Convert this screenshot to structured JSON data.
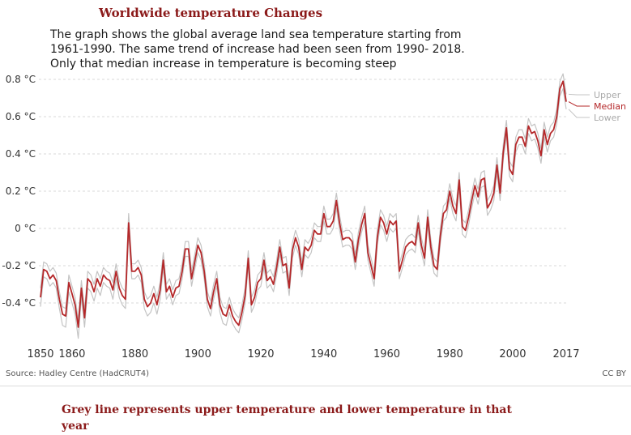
{
  "header": {
    "title": "Worldwide temperature Changes",
    "description": "The graph shows the global average land sea temperature starting from 1961-1990. The same trend of increase had been seen from 1990- 2018. Only that median increase in temperature is becoming steep"
  },
  "footer": {
    "source": "Source: Hadley Centre (HadCRUT4)",
    "license": "CC BY",
    "note": "Grey line represents upper temperature and lower temperature in that year"
  },
  "colors": {
    "median": "#b5282a",
    "bounds": "#c4c4c4",
    "grid": "#d9d9d9",
    "text": "#333333"
  },
  "chart_data": {
    "type": "line",
    "title": "Worldwide temperature Changes",
    "xlabel": "",
    "ylabel": "",
    "xlim": [
      1850,
      2017
    ],
    "ylim": [
      -0.6,
      0.85
    ],
    "y_ticks": [
      -0.4,
      -0.2,
      0,
      0.2,
      0.4,
      0.6,
      0.8
    ],
    "y_tick_labels": [
      "-0.4 °C",
      "-0.2 °C",
      "0 °C",
      "0.2 °C",
      "0.4 °C",
      "0.6 °C",
      "0.8 °C"
    ],
    "x_ticks": [
      1850,
      1860,
      1880,
      1900,
      1920,
      1940,
      1960,
      1980,
      2000,
      2017
    ],
    "x_tick_labels": [
      "1850",
      "1860",
      "1880",
      "1900",
      "1920",
      "1940",
      "1960",
      "1980",
      "2000",
      "2017"
    ],
    "grid": true,
    "x": [
      1850,
      1851,
      1852,
      1853,
      1854,
      1855,
      1856,
      1857,
      1858,
      1859,
      1860,
      1861,
      1862,
      1863,
      1864,
      1865,
      1866,
      1867,
      1868,
      1869,
      1870,
      1871,
      1872,
      1873,
      1874,
      1875,
      1876,
      1877,
      1878,
      1879,
      1880,
      1881,
      1882,
      1883,
      1884,
      1885,
      1886,
      1887,
      1888,
      1889,
      1890,
      1891,
      1892,
      1893,
      1894,
      1895,
      1896,
      1897,
      1898,
      1899,
      1900,
      1901,
      1902,
      1903,
      1904,
      1905,
      1906,
      1907,
      1908,
      1909,
      1910,
      1911,
      1912,
      1913,
      1914,
      1915,
      1916,
      1917,
      1918,
      1919,
      1920,
      1921,
      1922,
      1923,
      1924,
      1925,
      1926,
      1927,
      1928,
      1929,
      1930,
      1931,
      1932,
      1933,
      1934,
      1935,
      1936,
      1937,
      1938,
      1939,
      1940,
      1941,
      1942,
      1943,
      1944,
      1945,
      1946,
      1947,
      1948,
      1949,
      1950,
      1951,
      1952,
      1953,
      1954,
      1955,
      1956,
      1957,
      1958,
      1959,
      1960,
      1961,
      1962,
      1963,
      1964,
      1965,
      1966,
      1967,
      1968,
      1969,
      1970,
      1971,
      1972,
      1973,
      1974,
      1975,
      1976,
      1977,
      1978,
      1979,
      1980,
      1981,
      1982,
      1983,
      1984,
      1985,
      1986,
      1987,
      1988,
      1989,
      1990,
      1991,
      1992,
      1993,
      1994,
      1995,
      1996,
      1997,
      1998,
      1999,
      2000,
      2001,
      2002,
      2003,
      2004,
      2005,
      2006,
      2007,
      2008,
      2009,
      2010,
      2011,
      2012,
      2013,
      2014,
      2015,
      2016,
      2017
    ],
    "series": [
      {
        "name": "Median",
        "values": [
          -0.37,
          -0.22,
          -0.23,
          -0.27,
          -0.25,
          -0.28,
          -0.38,
          -0.46,
          -0.47,
          -0.29,
          -0.35,
          -0.41,
          -0.53,
          -0.32,
          -0.48,
          -0.27,
          -0.29,
          -0.34,
          -0.27,
          -0.31,
          -0.25,
          -0.27,
          -0.28,
          -0.33,
          -0.23,
          -0.32,
          -0.36,
          -0.38,
          0.03,
          -0.23,
          -0.23,
          -0.21,
          -0.25,
          -0.38,
          -0.42,
          -0.4,
          -0.35,
          -0.41,
          -0.33,
          -0.17,
          -0.34,
          -0.31,
          -0.37,
          -0.32,
          -0.31,
          -0.23,
          -0.11,
          -0.11,
          -0.27,
          -0.18,
          -0.09,
          -0.13,
          -0.23,
          -0.38,
          -0.43,
          -0.34,
          -0.27,
          -0.41,
          -0.46,
          -0.47,
          -0.41,
          -0.47,
          -0.5,
          -0.52,
          -0.45,
          -0.36,
          -0.16,
          -0.41,
          -0.37,
          -0.29,
          -0.27,
          -0.17,
          -0.28,
          -0.26,
          -0.3,
          -0.21,
          -0.1,
          -0.2,
          -0.19,
          -0.32,
          -0.12,
          -0.05,
          -0.1,
          -0.22,
          -0.1,
          -0.12,
          -0.09,
          -0.01,
          -0.03,
          -0.03,
          0.08,
          0.01,
          0.01,
          0.04,
          0.15,
          0.03,
          -0.06,
          -0.05,
          -0.05,
          -0.07,
          -0.18,
          -0.06,
          0.02,
          0.08,
          -0.13,
          -0.2,
          -0.27,
          -0.05,
          0.06,
          0.03,
          -0.03,
          0.04,
          0.02,
          0.04,
          -0.23,
          -0.17,
          -0.1,
          -0.08,
          -0.07,
          -0.09,
          0.03,
          -0.09,
          -0.16,
          0.06,
          -0.1,
          -0.2,
          -0.22,
          -0.04,
          0.08,
          0.1,
          0.2,
          0.12,
          0.08,
          0.26,
          0.01,
          -0.01,
          0.06,
          0.15,
          0.23,
          0.17,
          0.26,
          0.27,
          0.11,
          0.14,
          0.19,
          0.34,
          0.19,
          0.41,
          0.54,
          0.32,
          0.29,
          0.45,
          0.49,
          0.49,
          0.44,
          0.55,
          0.51,
          0.52,
          0.47,
          0.39,
          0.53,
          0.45,
          0.51,
          0.53,
          0.6,
          0.75,
          0.79,
          0.68
        ]
      },
      {
        "name": "Upper",
        "values": [
          -0.32,
          -0.18,
          -0.19,
          -0.23,
          -0.21,
          -0.24,
          -0.34,
          -0.42,
          -0.43,
          -0.25,
          -0.31,
          -0.37,
          -0.49,
          -0.28,
          -0.44,
          -0.23,
          -0.25,
          -0.3,
          -0.23,
          -0.27,
          -0.21,
          -0.23,
          -0.24,
          -0.29,
          -0.19,
          -0.28,
          -0.32,
          -0.34,
          0.08,
          -0.19,
          -0.19,
          -0.17,
          -0.21,
          -0.34,
          -0.38,
          -0.36,
          -0.31,
          -0.37,
          -0.29,
          -0.13,
          -0.3,
          -0.27,
          -0.33,
          -0.28,
          -0.27,
          -0.19,
          -0.07,
          -0.07,
          -0.23,
          -0.14,
          -0.05,
          -0.09,
          -0.19,
          -0.34,
          -0.39,
          -0.3,
          -0.23,
          -0.37,
          -0.42,
          -0.43,
          -0.37,
          -0.43,
          -0.46,
          -0.48,
          -0.41,
          -0.32,
          -0.12,
          -0.37,
          -0.33,
          -0.25,
          -0.23,
          -0.13,
          -0.24,
          -0.22,
          -0.26,
          -0.17,
          -0.06,
          -0.16,
          -0.15,
          -0.28,
          -0.08,
          -0.01,
          -0.06,
          -0.18,
          -0.06,
          -0.08,
          -0.05,
          0.03,
          0.01,
          0.01,
          0.12,
          0.05,
          0.05,
          0.08,
          0.19,
          0.07,
          -0.02,
          -0.01,
          -0.01,
          -0.03,
          -0.14,
          -0.02,
          0.06,
          0.12,
          -0.09,
          -0.16,
          -0.23,
          -0.01,
          0.1,
          0.07,
          0.01,
          0.08,
          0.06,
          0.08,
          -0.19,
          -0.13,
          -0.06,
          -0.04,
          -0.03,
          -0.05,
          0.07,
          -0.05,
          -0.12,
          0.1,
          -0.06,
          -0.16,
          -0.18,
          0.0,
          0.12,
          0.14,
          0.24,
          0.16,
          0.12,
          0.3,
          0.05,
          0.03,
          0.1,
          0.19,
          0.27,
          0.21,
          0.3,
          0.31,
          0.15,
          0.18,
          0.23,
          0.38,
          0.23,
          0.45,
          0.58,
          0.36,
          0.33,
          0.49,
          0.53,
          0.53,
          0.48,
          0.59,
          0.55,
          0.56,
          0.51,
          0.43,
          0.57,
          0.49,
          0.55,
          0.57,
          0.64,
          0.79,
          0.83,
          0.72
        ]
      },
      {
        "name": "Lower",
        "values": [
          -0.42,
          -0.26,
          -0.27,
          -0.31,
          -0.29,
          -0.32,
          -0.43,
          -0.52,
          -0.53,
          -0.34,
          -0.4,
          -0.46,
          -0.59,
          -0.37,
          -0.53,
          -0.32,
          -0.34,
          -0.39,
          -0.32,
          -0.36,
          -0.29,
          -0.31,
          -0.32,
          -0.38,
          -0.27,
          -0.37,
          -0.41,
          -0.43,
          -0.02,
          -0.27,
          -0.27,
          -0.25,
          -0.29,
          -0.43,
          -0.47,
          -0.45,
          -0.4,
          -0.46,
          -0.38,
          -0.21,
          -0.38,
          -0.35,
          -0.41,
          -0.36,
          -0.35,
          -0.27,
          -0.15,
          -0.15,
          -0.31,
          -0.22,
          -0.13,
          -0.17,
          -0.27,
          -0.42,
          -0.47,
          -0.38,
          -0.31,
          -0.45,
          -0.51,
          -0.52,
          -0.45,
          -0.51,
          -0.54,
          -0.56,
          -0.49,
          -0.4,
          -0.2,
          -0.45,
          -0.41,
          -0.33,
          -0.31,
          -0.21,
          -0.32,
          -0.3,
          -0.34,
          -0.25,
          -0.14,
          -0.24,
          -0.23,
          -0.36,
          -0.16,
          -0.09,
          -0.14,
          -0.26,
          -0.14,
          -0.16,
          -0.13,
          -0.05,
          -0.07,
          -0.07,
          0.04,
          -0.03,
          -0.03,
          0.0,
          0.11,
          -0.01,
          -0.1,
          -0.09,
          -0.09,
          -0.11,
          -0.22,
          -0.1,
          -0.02,
          0.04,
          -0.17,
          -0.24,
          -0.31,
          -0.09,
          0.02,
          -0.01,
          -0.07,
          0.0,
          -0.02,
          0.0,
          -0.27,
          -0.21,
          -0.14,
          -0.12,
          -0.11,
          -0.13,
          -0.01,
          -0.13,
          -0.2,
          0.02,
          -0.14,
          -0.24,
          -0.26,
          -0.08,
          0.04,
          0.06,
          0.16,
          0.08,
          0.04,
          0.22,
          -0.03,
          -0.05,
          0.02,
          0.11,
          0.19,
          0.13,
          0.22,
          0.23,
          0.07,
          0.1,
          0.15,
          0.3,
          0.15,
          0.37,
          0.5,
          0.28,
          0.25,
          0.41,
          0.45,
          0.45,
          0.4,
          0.51,
          0.47,
          0.48,
          0.43,
          0.35,
          0.49,
          0.41,
          0.47,
          0.49,
          0.56,
          0.71,
          0.75,
          0.64
        ]
      }
    ],
    "legend": [
      "Upper",
      "Median",
      "Lower"
    ],
    "legend_position": "right"
  }
}
